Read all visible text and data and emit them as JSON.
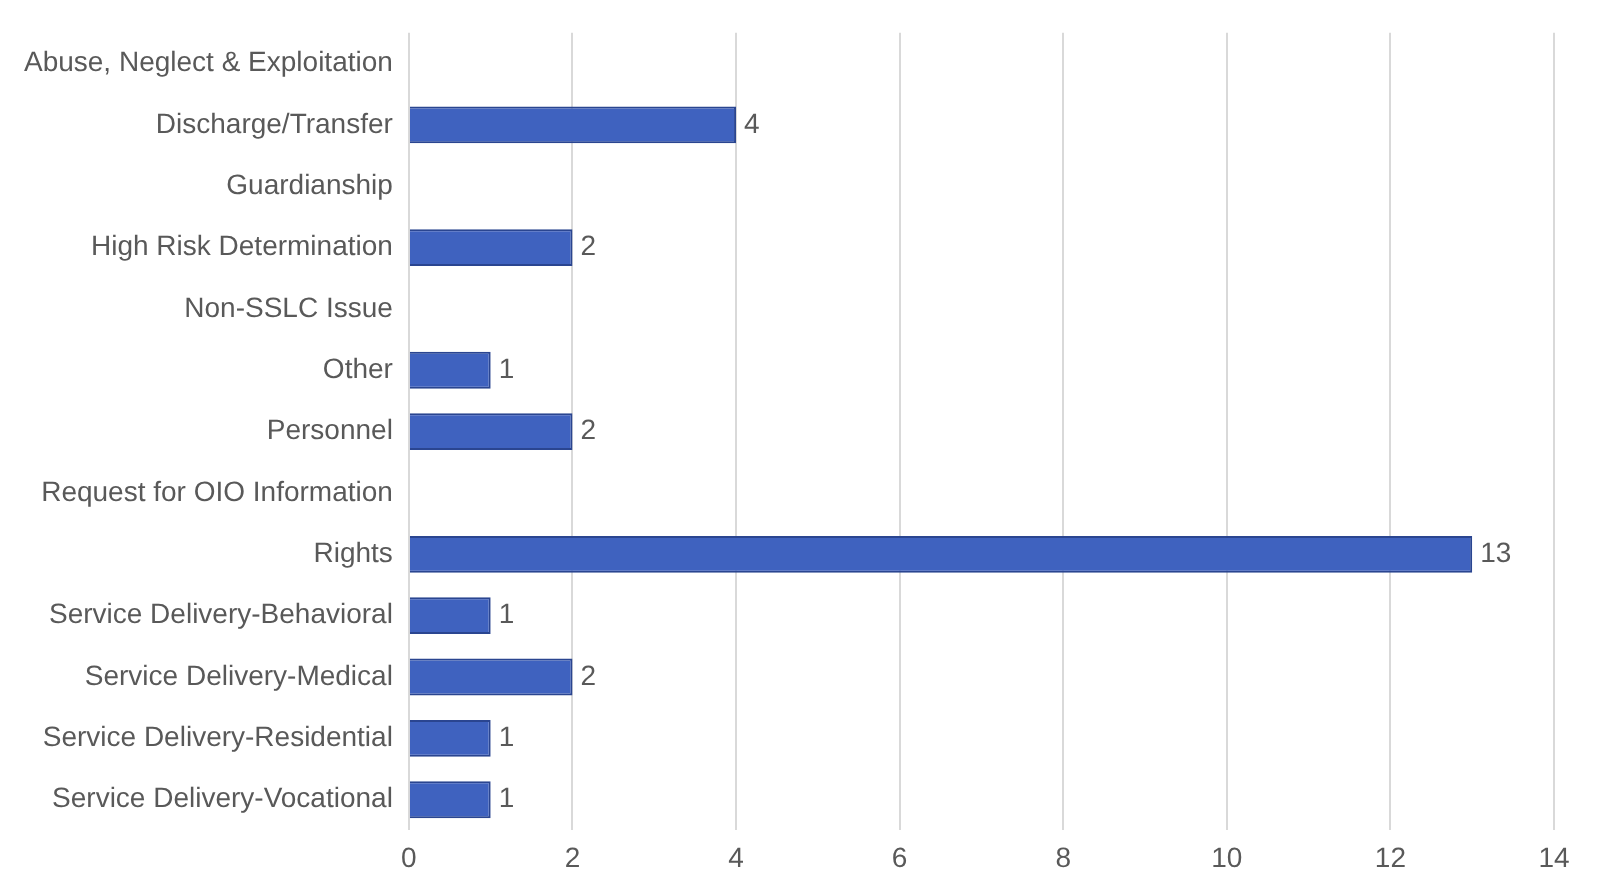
{
  "chart_data": {
    "type": "bar",
    "orientation": "horizontal",
    "categories": [
      "Abuse, Neglect & Exploitation",
      "Discharge/Transfer",
      "Guardianship",
      "High Risk Determination",
      "Non-SSLC Issue",
      "Other",
      "Personnel",
      "Request for OIO Information",
      "Rights",
      "Service Delivery-Behavioral",
      "Service Delivery-Medical",
      "Service Delivery-Residential",
      "Service Delivery-Vocational"
    ],
    "values": [
      null,
      4,
      null,
      2,
      null,
      1,
      2,
      null,
      13,
      1,
      2,
      1,
      1
    ],
    "color": "#3f62bf",
    "xlim": [
      0,
      14
    ],
    "xticks": [
      0,
      2,
      4,
      6,
      8,
      10,
      12,
      14
    ],
    "grid": "x",
    "data_labels": true
  }
}
